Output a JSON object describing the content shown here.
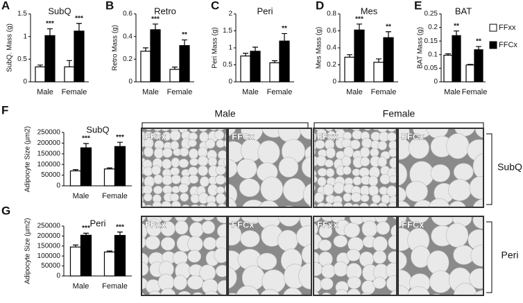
{
  "chart_data": [
    {
      "type": "bar",
      "panel": "A",
      "title": "SubQ",
      "y_label": "SubQ. Mass (g)",
      "categories": [
        "Male",
        "Female"
      ],
      "series": [
        {
          "color": "#ffffff",
          "values": [
            0.33,
            0.33
          ],
          "errors": [
            0.04,
            0.14
          ]
        },
        {
          "color": "#000000",
          "values": [
            1.02,
            1.12
          ],
          "errors": [
            0.15,
            0.17
          ],
          "annotations": [
            "***",
            "***"
          ]
        }
      ],
      "ylim": [
        0,
        1.5
      ],
      "yticks": [
        0,
        0.5,
        1,
        1.5
      ]
    },
    {
      "type": "bar",
      "panel": "B",
      "title": "Retro",
      "y_label": "Retro Mass (g)",
      "categories": [
        "Male",
        "Female"
      ],
      "series": [
        {
          "color": "#ffffff",
          "values": [
            0.27,
            0.11
          ],
          "errors": [
            0.03,
            0.02
          ]
        },
        {
          "color": "#000000",
          "values": [
            0.46,
            0.32
          ],
          "errors": [
            0.05,
            0.05
          ],
          "annotations": [
            "***",
            "**"
          ]
        }
      ],
      "ylim": [
        0,
        0.6
      ],
      "yticks": [
        0,
        0.2,
        0.4,
        0.6
      ]
    },
    {
      "type": "bar",
      "panel": "C",
      "title": "Peri",
      "y_label": "Peri Mass (g)",
      "categories": [
        "Male",
        "Female"
      ],
      "series": [
        {
          "color": "#ffffff",
          "values": [
            0.76,
            0.56
          ],
          "errors": [
            0.08,
            0.06
          ]
        },
        {
          "color": "#000000",
          "values": [
            0.9,
            1.2
          ],
          "errors": [
            0.12,
            0.22
          ],
          "annotations": [
            null,
            "**"
          ]
        }
      ],
      "ylim": [
        0,
        2
      ],
      "yticks": [
        0,
        0.5,
        1,
        1.5,
        2
      ]
    },
    {
      "type": "bar",
      "panel": "D",
      "title": "Mes",
      "y_label": "Mes Mass (g)",
      "categories": [
        "Male",
        "Female"
      ],
      "series": [
        {
          "color": "#ffffff",
          "values": [
            0.29,
            0.23
          ],
          "errors": [
            0.03,
            0.04
          ]
        },
        {
          "color": "#000000",
          "values": [
            0.61,
            0.52
          ],
          "errors": [
            0.07,
            0.07
          ],
          "annotations": [
            "***",
            "**"
          ]
        }
      ],
      "ylim": [
        0,
        0.8
      ],
      "yticks": [
        0,
        0.2,
        0.4,
        0.6,
        0.8
      ]
    },
    {
      "type": "bar",
      "panel": "E",
      "title": "BAT",
      "y_label": "BAT Mass (g)",
      "categories": [
        "Male",
        "Female"
      ],
      "series": [
        {
          "name": "FFxx",
          "color": "#ffffff",
          "values": [
            0.098,
            0.062
          ],
          "errors": [
            0.005,
            0.002
          ]
        },
        {
          "name": "FFCx",
          "color": "#000000",
          "values": [
            0.17,
            0.118
          ],
          "errors": [
            0.017,
            0.012
          ],
          "annotations": [
            "**",
            "**"
          ]
        }
      ],
      "ylim": [
        0,
        0.25
      ],
      "yticks": [
        0,
        0.05,
        0.1,
        0.15,
        0.2,
        0.25
      ],
      "legend": "right"
    },
    {
      "type": "bar",
      "panel": "F",
      "title": "SubQ",
      "y_label": "Adipocyte Size (µm2)",
      "categories": [
        "Male",
        "Female"
      ],
      "series": [
        {
          "color": "#ffffff",
          "values": [
            70000,
            79000
          ],
          "errors": [
            6000,
            5000
          ]
        },
        {
          "color": "#000000",
          "values": [
            178000,
            184000
          ],
          "errors": [
            20000,
            20000
          ],
          "annotations": [
            "***",
            "***"
          ]
        }
      ],
      "ylim": [
        0,
        250000
      ],
      "yticks": [
        0,
        50000,
        100000,
        150000,
        200000,
        250000
      ]
    },
    {
      "type": "bar",
      "panel": "G",
      "title": "Peri",
      "y_label": "Adipocyte Size (µm2)",
      "categories": [
        "Male",
        "Female"
      ],
      "series": [
        {
          "color": "#ffffff",
          "values": [
            145000,
            120000
          ],
          "errors": [
            10000,
            5000
          ]
        },
        {
          "color": "#000000",
          "values": [
            204000,
            203000
          ],
          "errors": [
            10000,
            17000
          ],
          "annotations": [
            "***",
            "***"
          ]
        }
      ],
      "ylim": [
        0,
        250000
      ],
      "yticks": [
        0,
        50000,
        100000,
        150000,
        200000,
        250000
      ]
    }
  ],
  "histology": {
    "column_headers": [
      "Male",
      "Female"
    ],
    "row_labels": [
      "SubQ",
      "Peri"
    ],
    "panels": [
      [
        "FFxx",
        "FFCx",
        "FFxx",
        "FFCx"
      ],
      [
        "FFxx",
        "FFCx",
        "FFxx",
        "FFCx"
      ]
    ]
  }
}
